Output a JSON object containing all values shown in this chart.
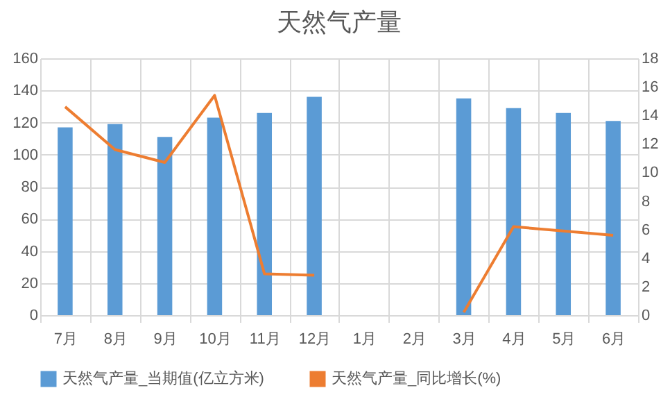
{
  "chart_data": {
    "type": "bar",
    "title": "天然气产量",
    "categories": [
      "7月",
      "8月",
      "9月",
      "10月",
      "11月",
      "12月",
      "1月",
      "2月",
      "3月",
      "4月",
      "5月",
      "6月"
    ],
    "series": [
      {
        "name": "天然气产量_当期值(亿立方米)",
        "color": "#5b9bd5",
        "values": [
          117,
          119,
          111,
          123,
          126,
          136,
          null,
          null,
          135,
          129,
          126,
          121
        ]
      },
      {
        "name": "天然气产量_同比增长(%)",
        "type": "line",
        "axis": "y2",
        "color": "#ed7d31",
        "values": [
          14.6,
          11.6,
          10.7,
          15.4,
          2.9,
          2.8,
          null,
          null,
          0.2,
          6.2,
          5.9,
          5.6
        ]
      }
    ],
    "ylim": [
      0,
      160
    ],
    "yticks": [
      0,
      20,
      40,
      60,
      80,
      100,
      120,
      140,
      160
    ],
    "y2lim": [
      0,
      18
    ],
    "y2ticks": [
      0,
      2,
      4,
      6,
      8,
      10,
      12,
      14,
      16,
      18
    ],
    "grid": true,
    "legend": "bottom",
    "marker": "none",
    "line_style": "solid"
  }
}
